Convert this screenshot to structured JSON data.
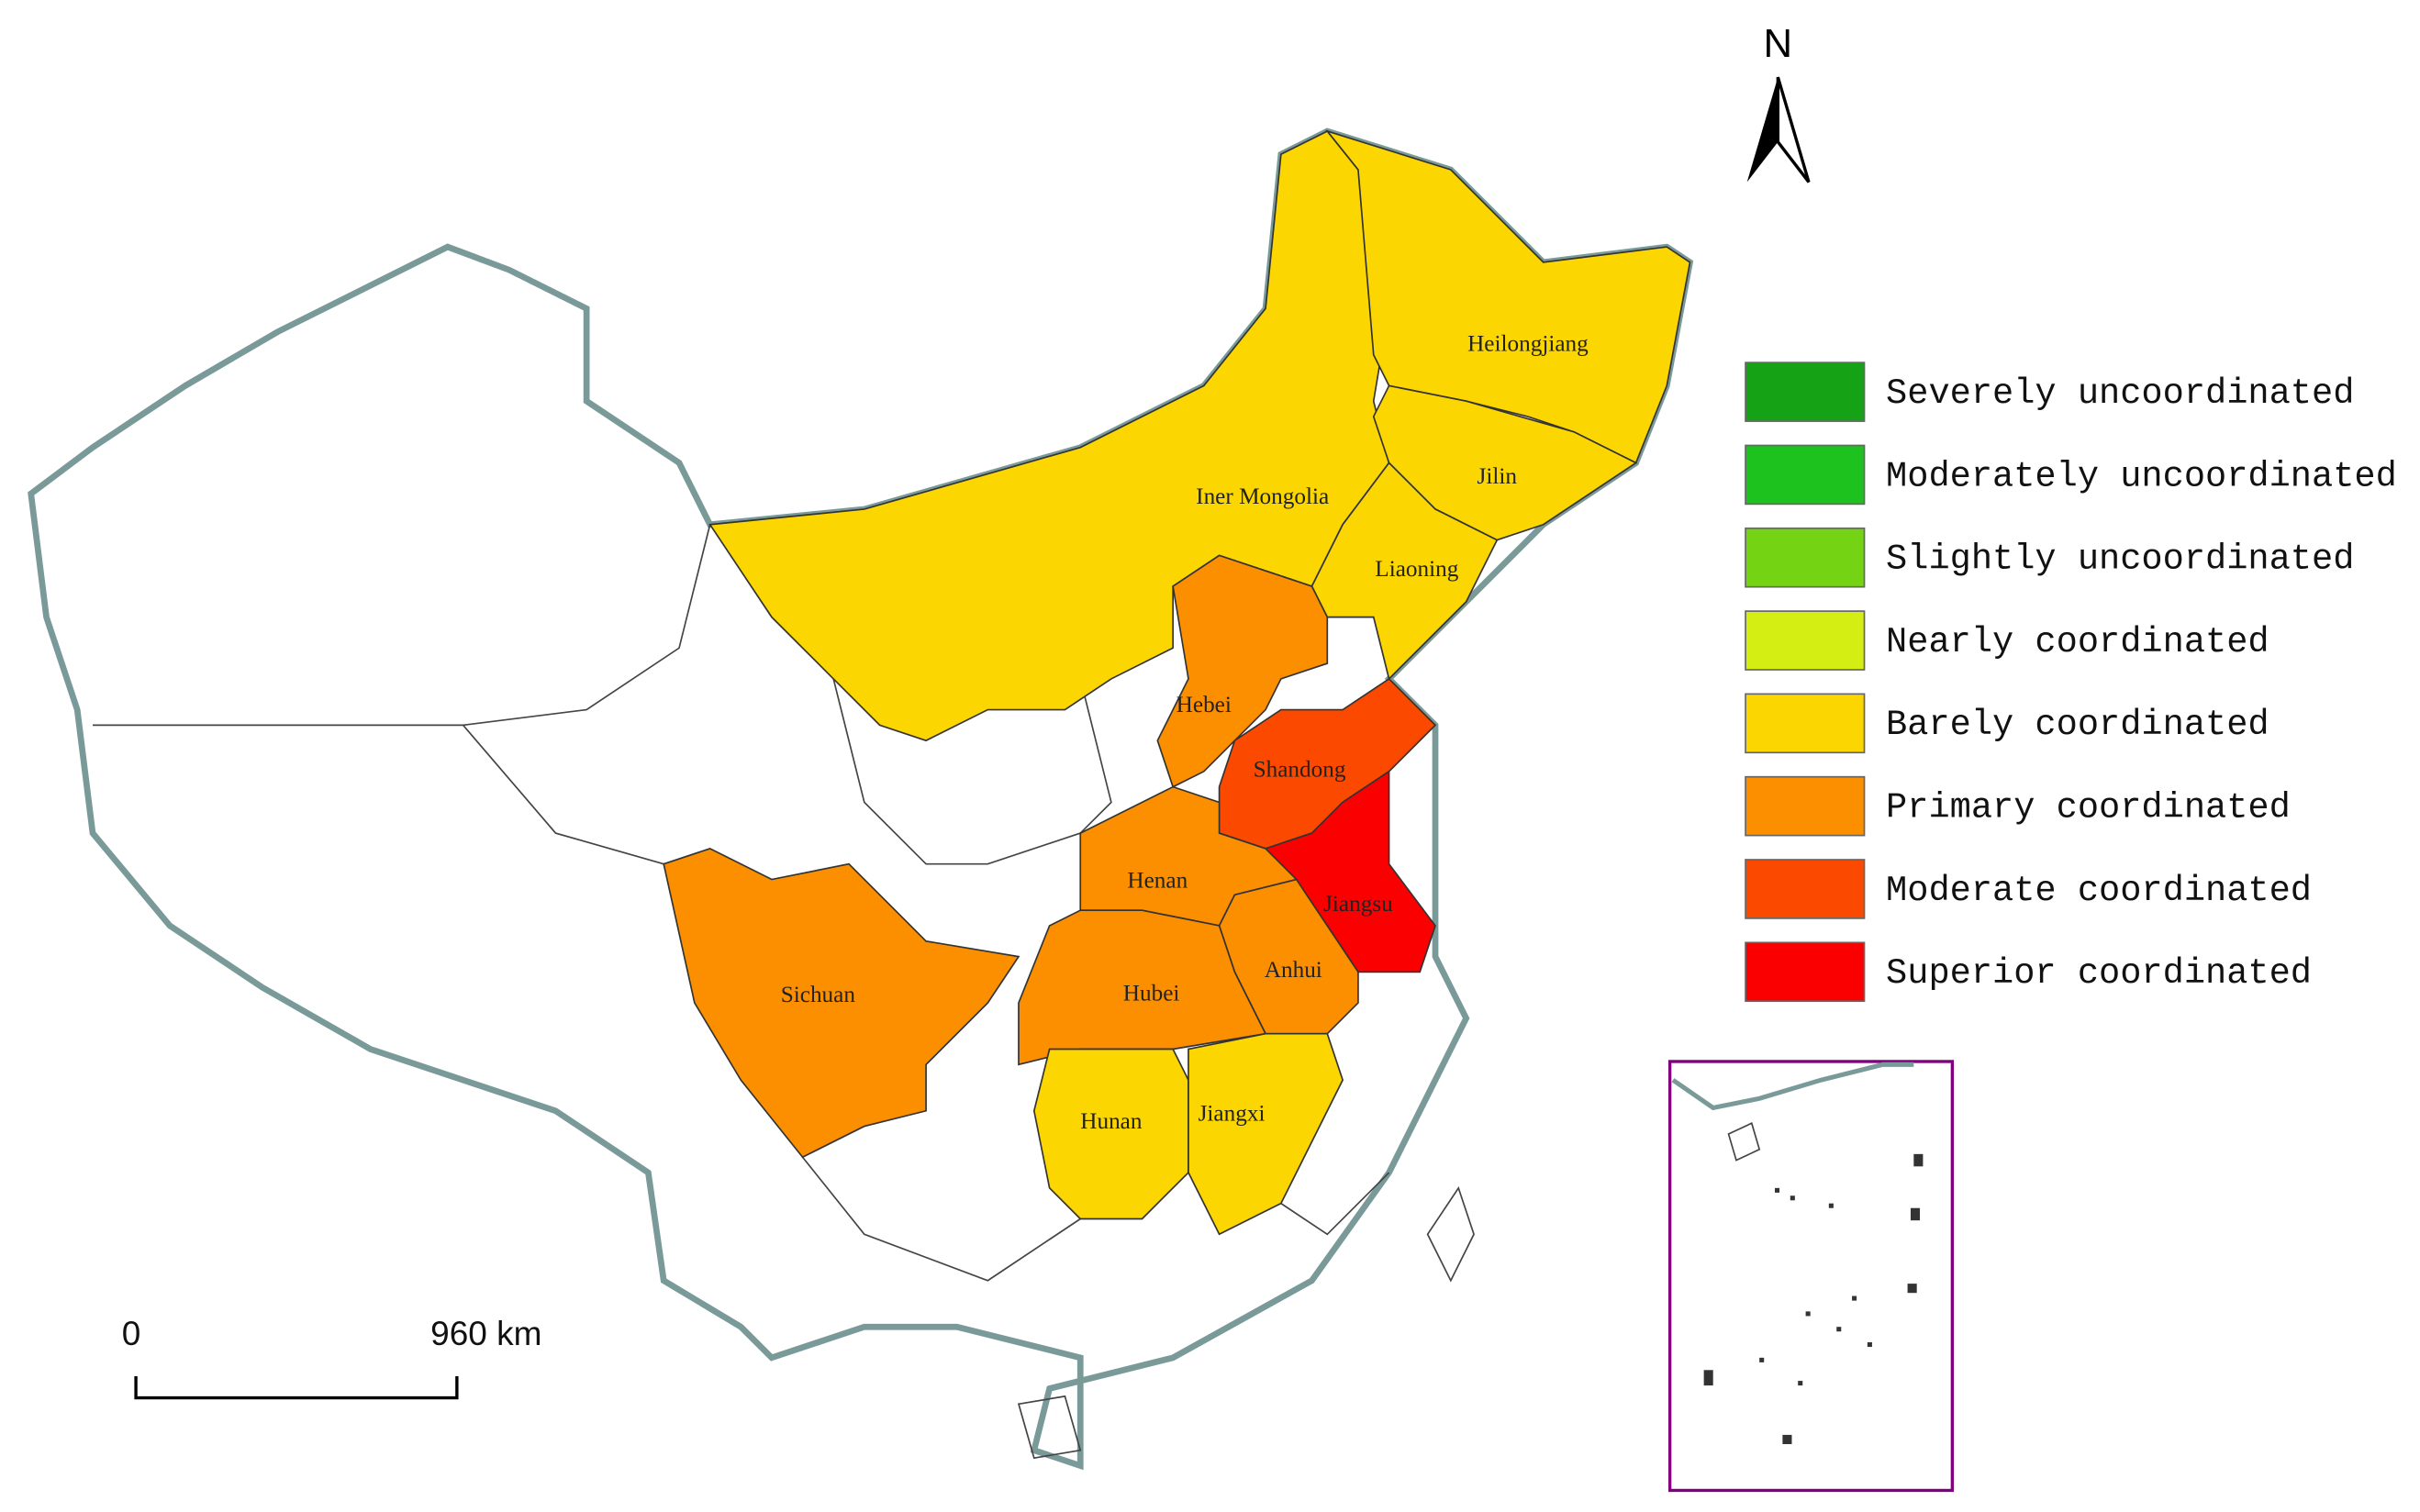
{
  "north_label": "N",
  "scale_bar": {
    "labels": [
      "0",
      "960 km"
    ]
  },
  "legend": {
    "items": [
      {
        "label": "Severely uncoordinated",
        "color": "#15a315"
      },
      {
        "label": "Moderately uncoordinated",
        "color": "#1ec21e"
      },
      {
        "label": "Slightly uncoordinated",
        "color": "#74d414"
      },
      {
        "label": "Nearly coordinated",
        "color": "#d4ee14"
      },
      {
        "label": "Barely coordinated",
        "color": "#fbd600"
      },
      {
        "label": "Primary coordinated",
        "color": "#fb8f00"
      },
      {
        "label": "Moderate coordinated",
        "color": "#fb4a00"
      },
      {
        "label": "Superior coordinated",
        "color": "#fb0000"
      }
    ]
  },
  "regions": [
    {
      "name": "Iner Mongolia",
      "color": "#fbd600"
    },
    {
      "name": "Heilongjiang",
      "color": "#fbd600"
    },
    {
      "name": "Jilin",
      "color": "#fbd600"
    },
    {
      "name": "Liaoning",
      "color": "#fbd600"
    },
    {
      "name": "Hebei",
      "color": "#fb8f00"
    },
    {
      "name": "Shandong",
      "color": "#fb4a00"
    },
    {
      "name": "Jiangsu",
      "color": "#fb0000"
    },
    {
      "name": "Henan",
      "color": "#fb8f00"
    },
    {
      "name": "Anhui",
      "color": "#fb8f00"
    },
    {
      "name": "Hubei",
      "color": "#fb8f00"
    },
    {
      "name": "Hunan",
      "color": "#fbd600"
    },
    {
      "name": "Jiangxi",
      "color": "#fbd600"
    },
    {
      "name": "Sichuan",
      "color": "#fb8f00"
    }
  ]
}
